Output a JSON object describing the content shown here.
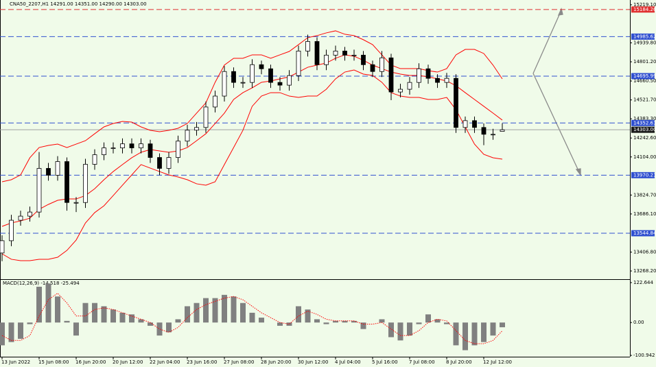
{
  "chart_data": [
    {
      "type": "candlestick",
      "title": "CNA50_2207,H1  14291.00 14351.00 14290.00 14303.00",
      "categories": [
        "13 Jun 2022",
        null,
        null,
        null,
        "15 Jun 08:00",
        null,
        null,
        null,
        "16 Jun 20:00",
        null,
        null,
        null,
        "20 Jun 12:00",
        null,
        null,
        null,
        "22 Jun 04:00",
        null,
        null,
        null,
        "23 Jun 16:00",
        null,
        null,
        null,
        "27 Jun 08:00",
        null,
        null,
        null,
        "28 Jun 20:00",
        null,
        null,
        null,
        "30 Jun 12:00",
        null,
        null,
        null,
        "4 Jul 04:00",
        null,
        null,
        null,
        "5 Jul 16:00",
        null,
        null,
        null,
        "7 Jul 08:00",
        null,
        null,
        null,
        "8 Jul 20:00",
        null,
        null,
        null,
        "12 Jul 12:00",
        null,
        null
      ],
      "open": [
        13400,
        13490,
        13640,
        13670,
        13700,
        14020,
        13970,
        14070,
        13770,
        13770,
        14050,
        14120,
        14170,
        14170,
        14200,
        14170,
        14200,
        14100,
        14020,
        14100,
        14220,
        14300,
        14320,
        14470,
        14550,
        14730,
        14650,
        14650,
        14780,
        14750,
        14650,
        14630,
        14700,
        14880,
        14950,
        14780,
        14850,
        14880,
        14850,
        14850,
        14780,
        14730,
        14830,
        14580,
        14600,
        14650,
        14750,
        14680,
        14650,
        14680,
        14320,
        14370,
        14320,
        14270,
        14291
      ],
      "high": [
        13530,
        13680,
        13710,
        13740,
        14140,
        14060,
        14110,
        14100,
        13810,
        14090,
        14160,
        14210,
        14210,
        14240,
        14240,
        14240,
        14230,
        14130,
        14140,
        14260,
        14340,
        14360,
        14510,
        14590,
        14770,
        14760,
        14690,
        14820,
        14810,
        14780,
        14690,
        14740,
        14920,
        15000,
        14980,
        14890,
        14920,
        14910,
        14890,
        14880,
        14810,
        14880,
        14860,
        14640,
        14690,
        14790,
        14780,
        14710,
        14720,
        14710,
        14400,
        14400,
        14350,
        14310,
        14351
      ],
      "low": [
        13340,
        13450,
        13600,
        13630,
        13660,
        13930,
        13930,
        13710,
        13700,
        13730,
        14010,
        14080,
        14130,
        14130,
        14130,
        14130,
        14060,
        13970,
        13980,
        14060,
        14180,
        14260,
        14280,
        14430,
        14510,
        14610,
        14610,
        14610,
        14710,
        14610,
        14590,
        14590,
        14660,
        14840,
        14740,
        14740,
        14810,
        14810,
        14810,
        14740,
        14690,
        14690,
        14520,
        14540,
        14560,
        14610,
        14640,
        14610,
        14610,
        14280,
        14280,
        14280,
        14190,
        14230,
        14290
      ],
      "close": [
        13490,
        13640,
        13670,
        13700,
        14020,
        13970,
        14070,
        13770,
        13770,
        14050,
        14120,
        14170,
        14170,
        14200,
        14170,
        14200,
        14100,
        14020,
        14100,
        14220,
        14300,
        14320,
        14470,
        14550,
        14730,
        14650,
        14650,
        14780,
        14750,
        14650,
        14630,
        14700,
        14880,
        14950,
        14780,
        14850,
        14880,
        14850,
        14850,
        14780,
        14730,
        14830,
        14580,
        14600,
        14650,
        14750,
        14680,
        14650,
        14680,
        14320,
        14370,
        14320,
        14270,
        14270,
        14303
      ],
      "bands": {
        "color": "#ff0000",
        "upper": [
          13922,
          13937,
          13972,
          14098,
          14173,
          14188,
          14198,
          14173,
          14198,
          14223,
          14274,
          14324,
          14349,
          14364,
          14359,
          14324,
          14299,
          14289,
          14299,
          14314,
          14349,
          14425,
          14500,
          14651,
          14777,
          14827,
          14827,
          14852,
          14852,
          14827,
          14852,
          14877,
          14927,
          14978,
          14993,
          15013,
          15028,
          15003,
          14993,
          14963,
          14927,
          14852,
          14777,
          14751,
          14751,
          14751,
          14736,
          14726,
          14751,
          14852,
          14892,
          14892,
          14862,
          14777,
          14676
        ],
        "middle": [
          13595,
          13620,
          13635,
          13655,
          13720,
          13756,
          13786,
          13796,
          13796,
          13821,
          13871,
          13937,
          13997,
          14048,
          14098,
          14138,
          14158,
          14148,
          14138,
          14148,
          14173,
          14223,
          14274,
          14349,
          14425,
          14525,
          14575,
          14610,
          14651,
          14661,
          14676,
          14691,
          14726,
          14761,
          14777,
          14792,
          14827,
          14852,
          14842,
          14812,
          14777,
          14751,
          14726,
          14711,
          14701,
          14701,
          14691,
          14676,
          14661,
          14626,
          14575,
          14525,
          14475,
          14425,
          14374
        ],
        "lower": [
          13394,
          13354,
          13344,
          13344,
          13354,
          13354,
          13369,
          13419,
          13495,
          13620,
          13696,
          13746,
          13821,
          13897,
          13972,
          14048,
          14022,
          13997,
          13972,
          13957,
          13937,
          13907,
          13897,
          13922,
          14048,
          14173,
          14299,
          14475,
          14550,
          14575,
          14575,
          14550,
          14540,
          14550,
          14550,
          14600,
          14676,
          14726,
          14741,
          14711,
          14701,
          14651,
          14575,
          14550,
          14540,
          14540,
          14525,
          14525,
          14540,
          14450,
          14324,
          14198,
          14123,
          14098,
          14088
        ]
      },
      "ylim": [
        13208,
        15254
      ],
      "yticks": [
        {
          "value": 15219.1,
          "label": "15219.10"
        },
        {
          "value": 14939.8,
          "label": "14939.80"
        },
        {
          "value": 14801.2,
          "label": "14801.20"
        },
        {
          "value": 14660.5,
          "label": "14660.50"
        },
        {
          "value": 14521.7,
          "label": "14521.70"
        },
        {
          "value": 14383.3,
          "label": "14383.30"
        },
        {
          "value": 14242.6,
          "label": "14242.60"
        },
        {
          "value": 14104,
          "label": "14104.00"
        },
        {
          "value": 13824.7,
          "label": "13824.70"
        },
        {
          "value": 13686.1,
          "label": "13686.10"
        },
        {
          "value": 13406.8,
          "label": "13406.80"
        },
        {
          "value": 13268.2,
          "label": "13268.20"
        }
      ],
      "levels": [
        {
          "value": 15184.26,
          "label": "15184.26",
          "color": "#e03030"
        },
        {
          "value": 14985.62,
          "label": "14985.62",
          "color": "#3050d0"
        },
        {
          "value": 14695.99,
          "label": "14695.99",
          "color": "#3050d0"
        },
        {
          "value": 14352.61,
          "label": "14352.61",
          "color": "#3050d0"
        },
        {
          "value": 13970.21,
          "label": "13970.21",
          "color": "#3050d0"
        },
        {
          "value": 13544.84,
          "label": "13544.84",
          "color": "#3050d0"
        }
      ],
      "last": {
        "value": 14303,
        "label": "14303.00",
        "color": "#a0a0a0"
      }
    },
    {
      "type": "macd",
      "title": "MACD(12,26,9) -14.518 -25.494",
      "values": [
        -70,
        -60,
        -50,
        -5,
        110,
        120,
        80,
        5,
        -40,
        60,
        60,
        50,
        40,
        30,
        25,
        10,
        -10,
        -40,
        -30,
        10,
        50,
        60,
        75,
        75,
        85,
        80,
        60,
        30,
        15,
        0,
        -10,
        -10,
        50,
        40,
        10,
        -5,
        5,
        5,
        5,
        -20,
        0,
        10,
        -45,
        -55,
        -40,
        -5,
        25,
        10,
        -5,
        -70,
        -85,
        -70,
        -60,
        -40,
        -14.518
      ],
      "signal": [
        -40,
        -55,
        -55,
        -40,
        20,
        70,
        90,
        60,
        20,
        20,
        40,
        45,
        40,
        30,
        20,
        10,
        0,
        -20,
        -30,
        -15,
        15,
        40,
        55,
        65,
        75,
        80,
        70,
        50,
        30,
        15,
        0,
        -5,
        20,
        35,
        25,
        10,
        5,
        5,
        5,
        -5,
        -5,
        0,
        -20,
        -40,
        -40,
        -25,
        0,
        10,
        5,
        -25,
        -55,
        -65,
        -65,
        -55,
        -25.494
      ],
      "color": "#808080",
      "signal_color": "#ff0000",
      "ylim": [
        -105,
        131
      ],
      "yticks": [
        122.644,
        {
          "value": 0,
          "label": "0.00"
        },
        -100.942
      ]
    }
  ]
}
